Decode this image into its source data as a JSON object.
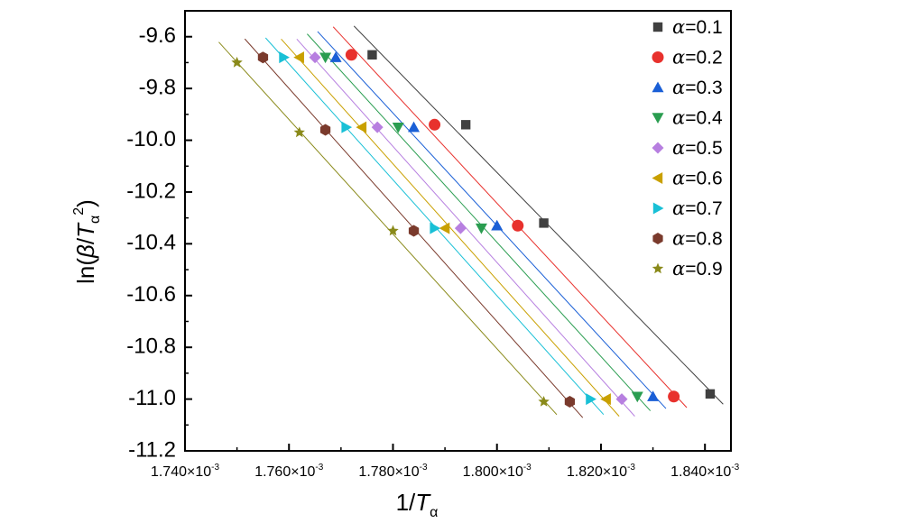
{
  "chart_data": {
    "type": "scatter",
    "xlabel": "1/T_α",
    "ylabel": "ln(β/T_α^2)",
    "xlim": [
      0.00174,
      0.001845
    ],
    "ylim": [
      -11.2,
      -9.5
    ],
    "x_ticks": [
      0.00174,
      0.00176,
      0.00178,
      0.0018,
      0.00182,
      0.00184
    ],
    "x_tick_labels": [
      "1.740×10-3",
      "1.760×10-3",
      "1.780×10-3",
      "1.800×10-3",
      "1.820×10-3",
      "1.840×10-3"
    ],
    "y_ticks": [
      -9.6,
      -9.8,
      -10.0,
      -10.2,
      -10.4,
      -10.6,
      -10.8,
      -11.0,
      -11.2
    ],
    "y_tick_labels": [
      "-9.6",
      "-9.8",
      "-10.0",
      "-10.2",
      "-10.4",
      "-10.6",
      "-10.8",
      "-11.0",
      "-11.2"
    ],
    "legend_position": "top-right",
    "fit_lines": true,
    "series": [
      {
        "name": "α=0.1",
        "marker": "square",
        "color": "#404040",
        "x": [
          0.001776,
          0.001794,
          0.001809,
          0.001841
        ],
        "y": [
          -9.67,
          -9.94,
          -10.32,
          -10.98
        ]
      },
      {
        "name": "α=0.2",
        "marker": "circle",
        "color": "#e8312d",
        "x": [
          0.001772,
          0.001788,
          0.001804,
          0.001834
        ],
        "y": [
          -9.67,
          -9.94,
          -10.33,
          -10.99
        ]
      },
      {
        "name": "α=0.3",
        "marker": "triangle-up",
        "color": "#1a5fd6",
        "x": [
          0.001769,
          0.001784,
          0.0018,
          0.00183
        ],
        "y": [
          -9.68,
          -9.95,
          -10.33,
          -10.99
        ]
      },
      {
        "name": "α=0.4",
        "marker": "triangle-down",
        "color": "#2a9d50",
        "x": [
          0.001767,
          0.001781,
          0.001797,
          0.001827
        ],
        "y": [
          -9.68,
          -9.95,
          -10.34,
          -10.99
        ]
      },
      {
        "name": "α=0.5",
        "marker": "diamond",
        "color": "#b77fe0",
        "x": [
          0.001765,
          0.001777,
          0.001793,
          0.001824
        ],
        "y": [
          -9.68,
          -9.95,
          -10.34,
          -11.0
        ]
      },
      {
        "name": "α=0.6",
        "marker": "triangle-left",
        "color": "#c9a000",
        "x": [
          0.001762,
          0.001774,
          0.00179,
          0.001821
        ],
        "y": [
          -9.68,
          -9.95,
          -10.34,
          -11.0
        ]
      },
      {
        "name": "α=0.7",
        "marker": "triangle-right",
        "color": "#19c0d6",
        "x": [
          0.001759,
          0.001771,
          0.001788,
          0.001818
        ],
        "y": [
          -9.68,
          -9.95,
          -10.34,
          -11.0
        ]
      },
      {
        "name": "α=0.8",
        "marker": "hexagon",
        "color": "#7a3a2c",
        "x": [
          0.001755,
          0.001767,
          0.001784,
          0.001814
        ],
        "y": [
          -9.68,
          -9.96,
          -10.35,
          -11.01
        ]
      },
      {
        "name": "α=0.9",
        "marker": "star",
        "color": "#8a8a1a",
        "x": [
          0.00175,
          0.001762,
          0.00178,
          0.001809
        ],
        "y": [
          -9.7,
          -9.97,
          -10.35,
          -11.01
        ]
      }
    ]
  }
}
